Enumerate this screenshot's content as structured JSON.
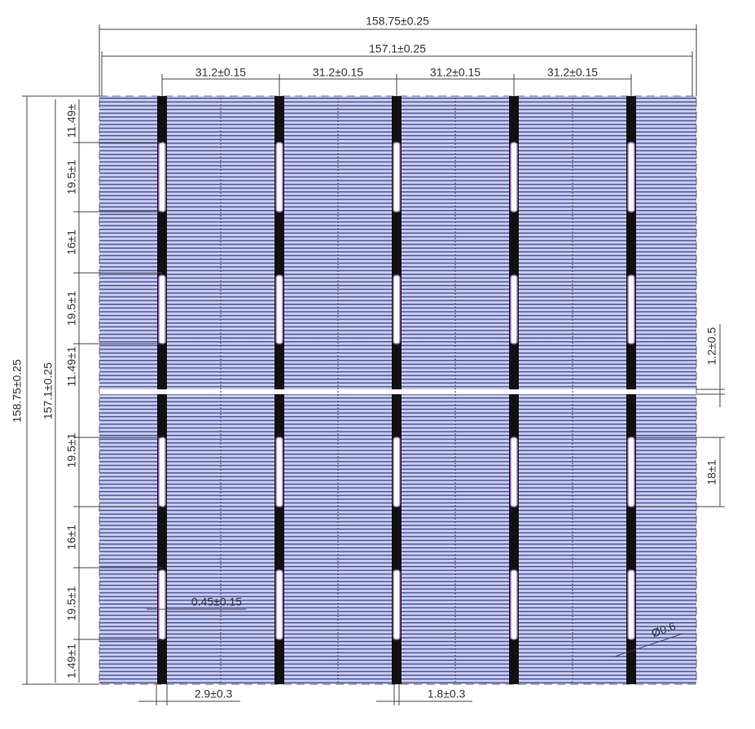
{
  "dimensions": {
    "top": {
      "overall": "158.75±0.25",
      "inner": "157.1±0.25",
      "pitch": [
        "31.2±0.15",
        "31.2±0.15",
        "31.2±0.15",
        "31.2±0.15"
      ]
    },
    "left": {
      "overall": "158.75±0.25",
      "inner": "157.1±0.25",
      "segments": [
        "11.49±",
        "19.5±1",
        "16±1",
        "19.5±1",
        "11.49±1",
        "19.5±1",
        "16±1",
        "19.5±1",
        "1.49±1"
      ]
    },
    "right": {
      "gap": "1.2±0.5",
      "pad": "18±1"
    },
    "bottom": {
      "busbar_offset": "2.9±0.3",
      "busbar_width": "1.8±0.3"
    },
    "notes": {
      "finger_width": "0.45±0.15",
      "chamfer": "Ø0.6"
    }
  }
}
